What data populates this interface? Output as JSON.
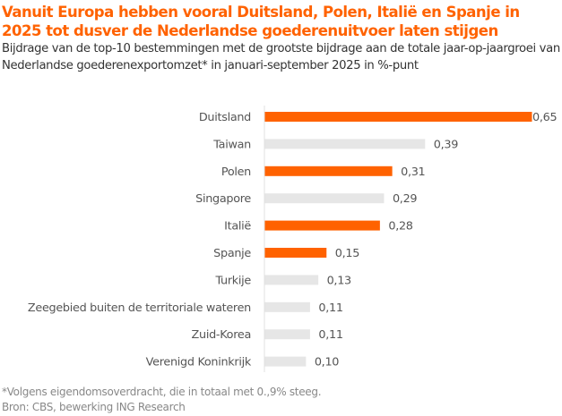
{
  "title": "Vanuit Europa hebben vooral Duitsland, Polen, Italië en Spanje in 2025 tot dusver de Nederlandse goederenuitvoer laten stijgen",
  "subtitle": "Bijdrage van de top-10 bestemmingen met de grootste bijdrage aan de totale jaar-op-jaargroei van Nederlandse goederenexportomzet* in januari-september 2025 in %-punt",
  "footnote": "*Volgens eigendomsoverdracht, die in totaal met 0.,9% steeg.",
  "source": "Bron: CBS, bewerking ING Research",
  "colors": {
    "highlight": "#ff6200",
    "other": "#e6e6e6",
    "axis": "#e0e0e0"
  },
  "chart_data": {
    "type": "bar",
    "orientation": "horizontal",
    "title": "Vanuit Europa hebben vooral Duitsland, Polen, Italië en Spanje in 2025 tot dusver de Nederlandse goederenuitvoer laten stijgen",
    "xlabel": "",
    "ylabel": "",
    "unit": "%-punt",
    "categories": [
      "Duitsland",
      "Taiwan",
      "Polen",
      "Singapore",
      "Italië",
      "Spanje",
      "Turkije",
      "Zeegebied buiten de territoriale wateren",
      "Zuid-Korea",
      "Verenigd Koninkrijk"
    ],
    "values": [
      0.65,
      0.39,
      0.31,
      0.29,
      0.28,
      0.15,
      0.13,
      0.11,
      0.11,
      0.1
    ],
    "value_labels": [
      "0,65",
      "0,39",
      "0,31",
      "0,29",
      "0,28",
      "0,15",
      "0,13",
      "0,11",
      "0,11",
      "0,10"
    ],
    "highlighted": [
      true,
      false,
      true,
      false,
      true,
      true,
      false,
      false,
      false,
      false
    ],
    "xlim": [
      0,
      0.65
    ],
    "grid": false,
    "legend": "none"
  }
}
